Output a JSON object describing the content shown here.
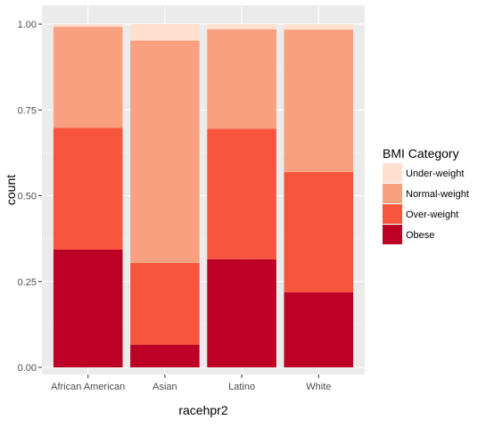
{
  "chart_data": {
    "type": "bar",
    "stacked": true,
    "categories": [
      "African American",
      "Asian",
      "Latino",
      "White"
    ],
    "series": [
      {
        "name": "Obese",
        "color": "#BD0026",
        "values": [
          0.343,
          0.066,
          0.315,
          0.219
        ]
      },
      {
        "name": "Over-weight",
        "color": "#F7553E",
        "values": [
          0.355,
          0.238,
          0.38,
          0.35
        ]
      },
      {
        "name": "Normal-weight",
        "color": "#F8A07F",
        "values": [
          0.294,
          0.648,
          0.29,
          0.415
        ]
      },
      {
        "name": "Under-weight",
        "color": "#FDE0D0",
        "values": [
          0.008,
          0.048,
          0.015,
          0.016
        ]
      }
    ],
    "xlabel": "racehpr2",
    "ylabel": "count",
    "ylim": [
      0,
      1
    ],
    "yticks": [
      0,
      0.25,
      0.5,
      0.75,
      1
    ],
    "ytick_labels": [
      "0.00",
      "0.25",
      "0.50",
      "0.75",
      "1.00"
    ],
    "legend": {
      "title": "BMI Category",
      "placement": "right",
      "order": [
        "Under-weight",
        "Normal-weight",
        "Over-weight",
        "Obese"
      ]
    },
    "grid": true,
    "panel_background": "#EBEBEB"
  }
}
